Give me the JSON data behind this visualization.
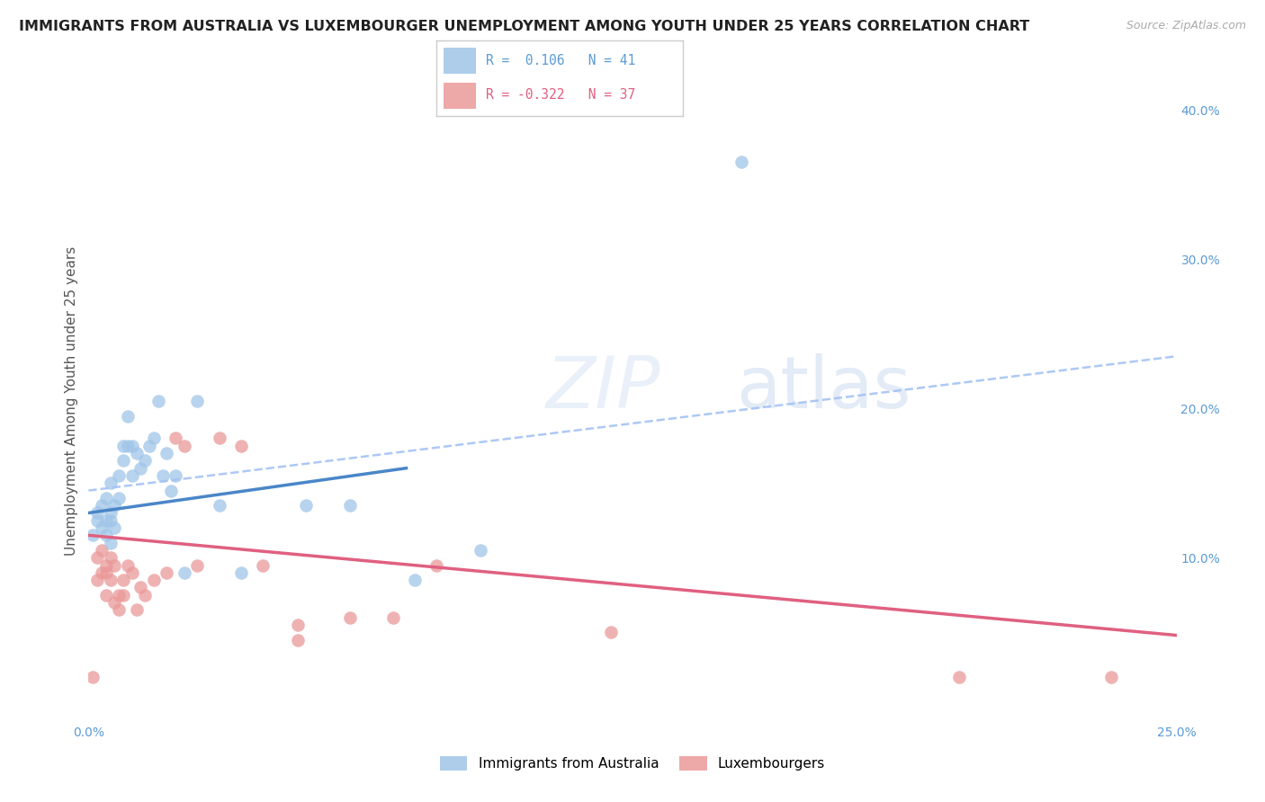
{
  "title": "IMMIGRANTS FROM AUSTRALIA VS LUXEMBOURGER UNEMPLOYMENT AMONG YOUTH UNDER 25 YEARS CORRELATION CHART",
  "source": "Source: ZipAtlas.com",
  "ylabel": "Unemployment Among Youth under 25 years",
  "legend_labels": [
    "Immigrants from Australia",
    "Luxembourgers"
  ],
  "watermark": "ZIPatlas",
  "xlim": [
    0.0,
    0.25
  ],
  "ylim": [
    -0.01,
    0.42
  ],
  "xticks": [
    0.0,
    0.05,
    0.1,
    0.15,
    0.2,
    0.25
  ],
  "xtick_labels": [
    "0.0%",
    "",
    "",
    "",
    "",
    "25.0%"
  ],
  "ytick_right": [
    0.1,
    0.2,
    0.3,
    0.4
  ],
  "ytick_right_labels": [
    "10.0%",
    "20.0%",
    "30.0%",
    "40.0%"
  ],
  "color_blue": "#9fc5e8",
  "color_pink": "#ea9999",
  "line_blue": "#4a86c8",
  "line_pink": "#e06080",
  "line_dashed_blue": "#a4c2f4",
  "blue_scatter_x": [
    0.001,
    0.002,
    0.002,
    0.003,
    0.003,
    0.004,
    0.004,
    0.004,
    0.005,
    0.005,
    0.005,
    0.005,
    0.006,
    0.006,
    0.007,
    0.007,
    0.008,
    0.008,
    0.009,
    0.009,
    0.01,
    0.01,
    0.011,
    0.012,
    0.013,
    0.014,
    0.015,
    0.016,
    0.017,
    0.018,
    0.019,
    0.02,
    0.022,
    0.025,
    0.03,
    0.035,
    0.05,
    0.06,
    0.075,
    0.09,
    0.15
  ],
  "blue_scatter_y": [
    0.115,
    0.125,
    0.13,
    0.12,
    0.135,
    0.115,
    0.125,
    0.14,
    0.11,
    0.13,
    0.125,
    0.15,
    0.135,
    0.12,
    0.14,
    0.155,
    0.175,
    0.165,
    0.175,
    0.195,
    0.155,
    0.175,
    0.17,
    0.16,
    0.165,
    0.175,
    0.18,
    0.205,
    0.155,
    0.17,
    0.145,
    0.155,
    0.09,
    0.205,
    0.135,
    0.09,
    0.135,
    0.135,
    0.085,
    0.105,
    0.365
  ],
  "pink_scatter_x": [
    0.001,
    0.002,
    0.002,
    0.003,
    0.003,
    0.004,
    0.004,
    0.004,
    0.005,
    0.005,
    0.006,
    0.006,
    0.007,
    0.007,
    0.008,
    0.008,
    0.009,
    0.01,
    0.011,
    0.012,
    0.013,
    0.015,
    0.018,
    0.02,
    0.022,
    0.025,
    0.03,
    0.035,
    0.04,
    0.048,
    0.048,
    0.06,
    0.07,
    0.08,
    0.12,
    0.2,
    0.235
  ],
  "pink_scatter_y": [
    0.02,
    0.1,
    0.085,
    0.09,
    0.105,
    0.095,
    0.09,
    0.075,
    0.1,
    0.085,
    0.095,
    0.07,
    0.075,
    0.065,
    0.085,
    0.075,
    0.095,
    0.09,
    0.065,
    0.08,
    0.075,
    0.085,
    0.09,
    0.18,
    0.175,
    0.095,
    0.18,
    0.175,
    0.095,
    0.045,
    0.055,
    0.06,
    0.06,
    0.095,
    0.05,
    0.02,
    0.02
  ],
  "blue_line_x0": 0.0,
  "blue_line_x1": 0.073,
  "blue_line_y0": 0.13,
  "blue_line_y1": 0.16,
  "pink_line_x0": 0.0,
  "pink_line_x1": 0.25,
  "pink_line_y0": 0.115,
  "pink_line_y1": 0.048,
  "dash_line_x0": 0.0,
  "dash_line_x1": 0.25,
  "dash_line_y0": 0.145,
  "dash_line_y1": 0.235,
  "background_color": "#ffffff",
  "title_fontsize": 11.5,
  "axis_label_fontsize": 11,
  "tick_fontsize": 10,
  "legend_fontsize": 11
}
